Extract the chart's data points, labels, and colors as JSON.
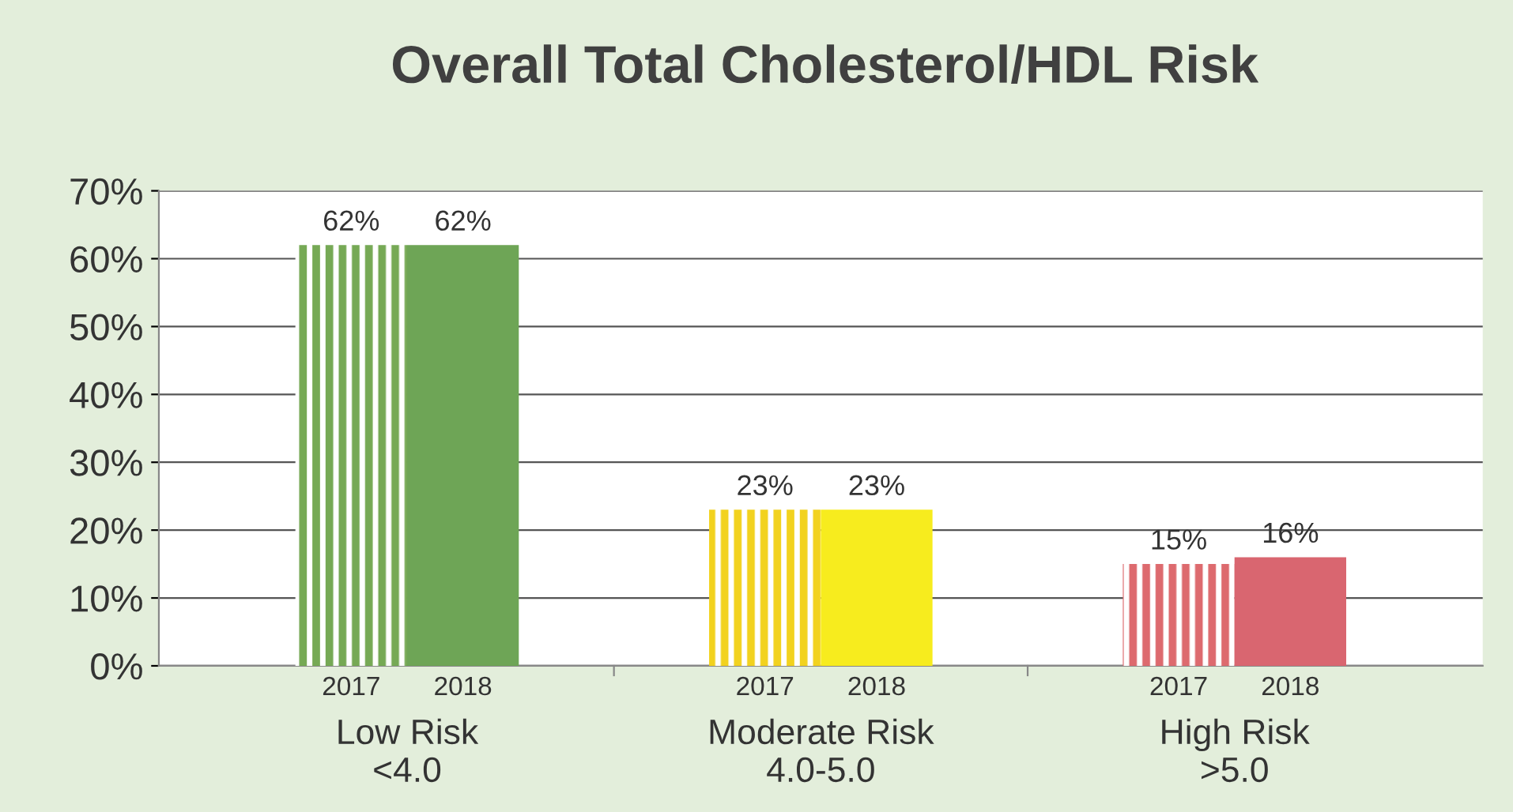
{
  "chart_data": {
    "type": "bar",
    "title": "Overall Total Cholesterol/HDL Risk",
    "categories": [
      "Low Risk\n<4.0",
      "Moderate Risk\n4.0-5.0",
      "High Risk\n>5.0"
    ],
    "series": [
      {
        "name": "2017",
        "colors": [
          "#76a955",
          "#f2d21f",
          "#dd6a6e"
        ],
        "values": [
          62,
          23,
          15
        ]
      },
      {
        "name": "2018",
        "colors": [
          "#6ea556",
          "#f7ec1e",
          "#d96670"
        ],
        "values": [
          62,
          23,
          16
        ]
      }
    ],
    "ylim": [
      0,
      70
    ],
    "yticks": [
      {
        "value": 0,
        "label": "0%"
      },
      {
        "value": 10,
        "label": "10%"
      },
      {
        "value": 20,
        "label": "20%"
      },
      {
        "value": 30,
        "label": "30%"
      },
      {
        "value": 40,
        "label": "40%"
      },
      {
        "value": 50,
        "label": "50%"
      },
      {
        "value": 60,
        "label": "60%"
      },
      {
        "value": 70,
        "label": "70%"
      }
    ],
    "value_labels": [
      [
        "62%",
        "23%",
        "15%"
      ],
      [
        "62%",
        "23%",
        "16%"
      ]
    ],
    "grid": "y",
    "legend": false
  }
}
